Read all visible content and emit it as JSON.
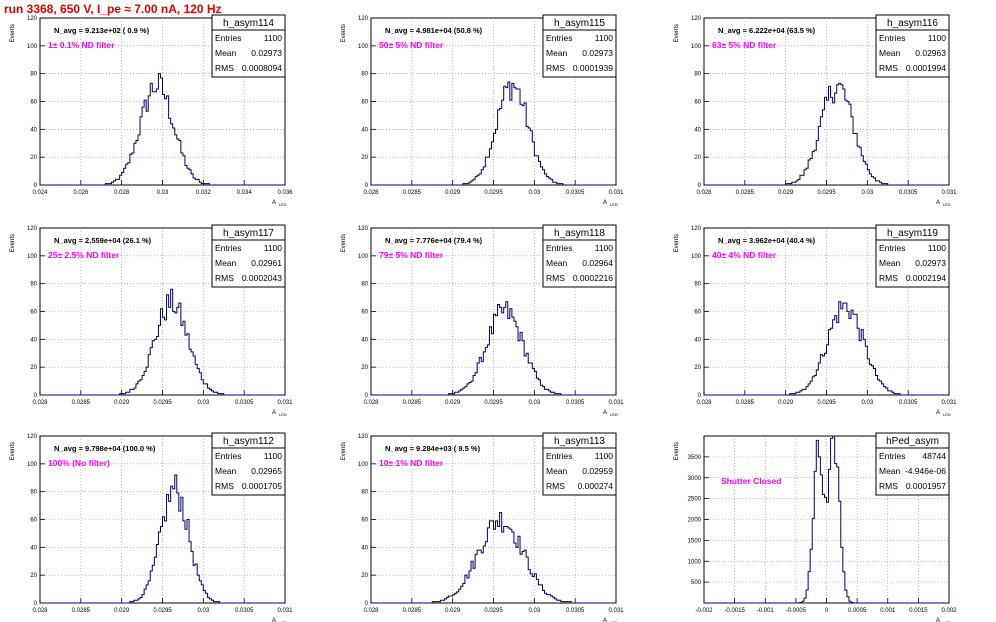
{
  "title": "run 3368,   650 V, I_pe ≈ 7.00 nA, 120 Hz",
  "colors": {
    "hist": "#00006e",
    "label": "#ff00ff",
    "title": "#e00000"
  },
  "stat_labels": {
    "entries": "Entries",
    "mean": "Mean",
    "rms": "RMS"
  },
  "y_axis_label": "Events",
  "x_axis_label": "A",
  "x_axis_sub": "LED",
  "chart_data": [
    {
      "type": "bar",
      "name": "h_asym114",
      "navg": "N_avg = 9.213e+02 ( 0.9 %)",
      "label": "1± 0.1% ND filter",
      "entries": "1100",
      "mean": "0.02973",
      "rms": "0.0008094",
      "xlim": [
        0.024,
        0.036
      ],
      "xticks": [
        "0.024",
        "0.026",
        "0.028",
        "0.03",
        "0.032",
        "0.034",
        "0.036"
      ],
      "xtick_values": [
        0.024,
        0.026,
        0.028,
        0.03,
        0.032,
        0.034,
        0.036
      ],
      "ylim": [
        0,
        120
      ],
      "yticks": [
        0,
        20,
        40,
        60,
        80,
        100,
        120
      ],
      "center": 0.02973,
      "sigma": 0.00081,
      "peak": 72,
      "grid": true
    },
    {
      "type": "bar",
      "name": "h_asym115",
      "navg": "N_avg = 4.981e+04 (50.8 %)",
      "label": "50± 5% ND filter",
      "entries": "1100",
      "mean": "0.02973",
      "rms": "0.0001939",
      "xlim": [
        0.028,
        0.031
      ],
      "xticks": [
        "0.028",
        "0.0285",
        "0.029",
        "0.0295",
        "0.03",
        "0.0305",
        "0.031"
      ],
      "xtick_values": [
        0.028,
        0.0285,
        0.029,
        0.0295,
        0.03,
        0.0305,
        0.031
      ],
      "ylim": [
        0,
        120
      ],
      "yticks": [
        0,
        20,
        40,
        60,
        80,
        100,
        120
      ],
      "center": 0.02973,
      "sigma": 0.000194,
      "peak": 72,
      "grid": true
    },
    {
      "type": "bar",
      "name": "h_asym116",
      "navg": "N_avg = 6.222e+04 (63.5 %)",
      "label": "63± 5% ND filter",
      "entries": "1100",
      "mean": "0.02963",
      "rms": "0.0001994",
      "xlim": [
        0.028,
        0.031
      ],
      "xticks": [
        "0.028",
        "0.0285",
        "0.029",
        "0.0295",
        "0.03",
        "0.0305",
        "0.031"
      ],
      "xtick_values": [
        0.028,
        0.0285,
        0.029,
        0.0295,
        0.03,
        0.0305,
        0.031
      ],
      "ylim": [
        0,
        120
      ],
      "yticks": [
        0,
        20,
        40,
        60,
        80,
        100,
        120
      ],
      "center": 0.02963,
      "sigma": 0.000199,
      "peak": 71,
      "grid": true
    },
    {
      "type": "bar",
      "name": "h_asym117",
      "navg": "N_avg = 2.559e+04 (26.1 %)",
      "label": "25± 2.5% ND filter",
      "entries": "1100",
      "mean": "0.02961",
      "rms": "0.0002043",
      "xlim": [
        0.028,
        0.031
      ],
      "xticks": [
        "0.028",
        "0.0285",
        "0.029",
        "0.0295",
        "0.03",
        "0.0305",
        "0.031"
      ],
      "xtick_values": [
        0.028,
        0.0285,
        0.029,
        0.0295,
        0.03,
        0.0305,
        0.031
      ],
      "ylim": [
        0,
        120
      ],
      "yticks": [
        0,
        20,
        40,
        60,
        80,
        100,
        120
      ],
      "center": 0.02961,
      "sigma": 0.000204,
      "peak": 66,
      "grid": true
    },
    {
      "type": "bar",
      "name": "h_asym118",
      "navg": "N_avg = 7.776e+04 (79.4 %)",
      "label": "79± 5% ND filter",
      "entries": "1100",
      "mean": "0.02964",
      "rms": "0.0002216",
      "xlim": [
        0.028,
        0.031
      ],
      "xticks": [
        "0.028",
        "0.0285",
        "0.029",
        "0.0295",
        "0.03",
        "0.0305",
        "0.031"
      ],
      "xtick_values": [
        0.028,
        0.0285,
        0.029,
        0.0295,
        0.03,
        0.0305,
        0.031
      ],
      "ylim": [
        0,
        120
      ],
      "yticks": [
        0,
        20,
        40,
        60,
        80,
        100,
        120
      ],
      "center": 0.02964,
      "sigma": 0.000222,
      "peak": 60,
      "grid": true
    },
    {
      "type": "bar",
      "name": "h_asym119",
      "navg": "N_avg = 3.962e+04 (40.4 %)",
      "label": "40± 4% ND filter",
      "entries": "1100",
      "mean": "0.02973",
      "rms": "0.0002194",
      "xlim": [
        0.028,
        0.031
      ],
      "xticks": [
        "0.028",
        "0.0285",
        "0.029",
        "0.0295",
        "0.03",
        "0.0305",
        "0.031"
      ],
      "xtick_values": [
        0.028,
        0.0285,
        0.029,
        0.0295,
        0.03,
        0.0305,
        0.031
      ],
      "ylim": [
        0,
        120
      ],
      "yticks": [
        0,
        20,
        40,
        60,
        80,
        100,
        120
      ],
      "center": 0.02973,
      "sigma": 0.000219,
      "peak": 64,
      "grid": true
    },
    {
      "type": "bar",
      "name": "h_asym112",
      "navg": "N_avg = 9.798e+04 (100.0 %)",
      "label": "100% (No filter)",
      "entries": "1100",
      "mean": "0.02965",
      "rms": "0.0001705",
      "xlim": [
        0.028,
        0.031
      ],
      "xticks": [
        "0.028",
        "0.0285",
        "0.029",
        "0.0295",
        "0.03",
        "0.0305",
        "0.031"
      ],
      "xtick_values": [
        0.028,
        0.0285,
        0.029,
        0.0295,
        0.03,
        0.0305,
        0.031
      ],
      "ylim": [
        0,
        120
      ],
      "yticks": [
        0,
        20,
        40,
        60,
        80,
        100,
        120
      ],
      "center": 0.02965,
      "sigma": 0.000171,
      "peak": 82,
      "grid": true
    },
    {
      "type": "bar",
      "name": "h_asym113",
      "navg": "N_avg = 9.284e+03 ( 9.5 %)",
      "label": "10± 1% ND filter",
      "entries": "1100",
      "mean": "0.02959",
      "rms": "0.000274",
      "xlim": [
        0.028,
        0.031
      ],
      "xticks": [
        "0.028",
        "0.0285",
        "0.029",
        "0.0295",
        "0.03",
        "0.0305",
        "0.031"
      ],
      "xtick_values": [
        0.028,
        0.0285,
        0.029,
        0.0295,
        0.03,
        0.0305,
        0.031
      ],
      "ylim": [
        0,
        120
      ],
      "yticks": [
        0,
        20,
        40,
        60,
        80,
        100,
        120
      ],
      "center": 0.02959,
      "sigma": 0.000274,
      "peak": 60,
      "grid": true
    },
    {
      "type": "bar",
      "name": "hPed_asym",
      "navg": "",
      "label": "Shutter Closed",
      "entries": "48744",
      "mean": "-4.946e-06",
      "rms": "0.0001957",
      "xlim": [
        -0.002,
        0.002
      ],
      "xticks": [
        "-0.002",
        "-0.0015",
        "-0.001",
        "-0.0005",
        "0",
        "0.0005",
        "0.001",
        "0.0015",
        "0.002"
      ],
      "xtick_values": [
        -0.002,
        -0.0015,
        -0.001,
        -0.0005,
        0,
        0.0005,
        0.001,
        0.0015,
        0.002
      ],
      "ylim": [
        0,
        4000
      ],
      "yticks": [
        500,
        1000,
        1500,
        2000,
        2500,
        3000,
        3500
      ],
      "peaks": [
        {
          "center": -0.00013,
          "sigma": 8.5e-05,
          "height": 3500
        },
        {
          "center": 0.00013,
          "sigma": 8.5e-05,
          "height": 3850
        }
      ],
      "grid": true
    }
  ]
}
